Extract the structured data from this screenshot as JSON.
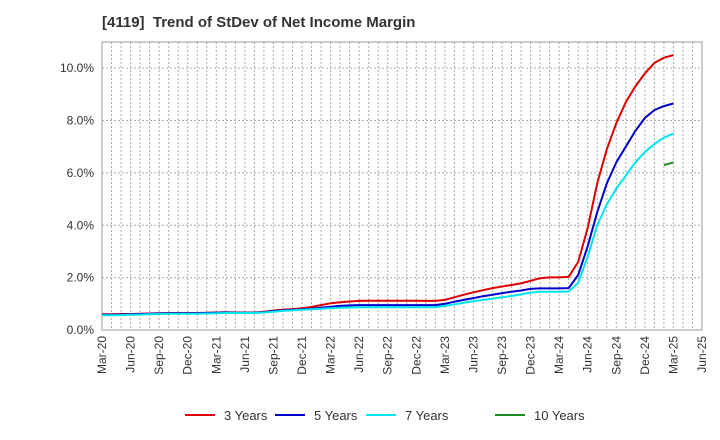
{
  "chart_data": {
    "type": "line",
    "title": "[4119]  Trend of StDev of Net Income Margin",
    "xlabel": "",
    "ylabel": "",
    "ylim": [
      0,
      11
    ],
    "yticks": [
      0,
      2,
      4,
      6,
      8,
      10
    ],
    "ytick_labels": [
      "0.0%",
      "2.0%",
      "4.0%",
      "6.0%",
      "8.0%",
      "10.0%"
    ],
    "xticks": [
      "Mar-20",
      "Jun-20",
      "Sep-20",
      "Dec-20",
      "Mar-21",
      "Jun-21",
      "Sep-21",
      "Dec-21",
      "Mar-22",
      "Jun-22",
      "Sep-22",
      "Dec-22",
      "Mar-23",
      "Jun-23",
      "Sep-23",
      "Dec-23",
      "Mar-24",
      "Jun-24",
      "Sep-24",
      "Dec-24",
      "Mar-25",
      "Jun-25"
    ],
    "x": [
      "Mar-20",
      "Apr-20",
      "May-20",
      "Jun-20",
      "Jul-20",
      "Aug-20",
      "Sep-20",
      "Oct-20",
      "Nov-20",
      "Dec-20",
      "Jan-21",
      "Feb-21",
      "Mar-21",
      "Apr-21",
      "May-21",
      "Jun-21",
      "Jul-21",
      "Aug-21",
      "Sep-21",
      "Oct-21",
      "Nov-21",
      "Dec-21",
      "Jan-22",
      "Feb-22",
      "Mar-22",
      "Apr-22",
      "May-22",
      "Jun-22",
      "Jul-22",
      "Aug-22",
      "Sep-22",
      "Oct-22",
      "Nov-22",
      "Dec-22",
      "Jan-23",
      "Feb-23",
      "Mar-23",
      "Apr-23",
      "May-23",
      "Jun-23",
      "Jul-23",
      "Aug-23",
      "Sep-23",
      "Oct-23",
      "Nov-23",
      "Dec-23",
      "Jan-24",
      "Feb-24",
      "Mar-24",
      "Apr-24",
      "May-24",
      "Jun-24",
      "Jul-24",
      "Aug-24",
      "Sep-24",
      "Oct-24",
      "Nov-24",
      "Dec-24",
      "Jan-25",
      "Feb-25",
      "Mar-25"
    ],
    "grid": true,
    "legend_position": "bottom",
    "series": [
      {
        "name": "3 Years",
        "color": "#dd0000",
        "values": [
          0.6,
          0.6,
          0.61,
          0.61,
          0.62,
          0.63,
          0.64,
          0.65,
          0.65,
          0.65,
          0.65,
          0.66,
          0.67,
          0.68,
          0.67,
          0.67,
          0.67,
          0.7,
          0.74,
          0.78,
          0.8,
          0.83,
          0.88,
          0.95,
          1.02,
          1.06,
          1.09,
          1.11,
          1.12,
          1.12,
          1.12,
          1.12,
          1.12,
          1.12,
          1.11,
          1.11,
          1.15,
          1.25,
          1.35,
          1.44,
          1.52,
          1.6,
          1.66,
          1.72,
          1.78,
          1.88,
          1.98,
          2.01,
          2.01,
          2.03,
          2.6,
          3.9,
          5.6,
          6.9,
          7.9,
          8.7,
          9.3,
          9.8,
          10.2,
          10.4,
          10.5
        ]
      },
      {
        "name": "5 Years",
        "color": "#0000cc",
        "values": [
          0.58,
          0.58,
          0.59,
          0.6,
          0.61,
          0.62,
          0.63,
          0.64,
          0.64,
          0.64,
          0.64,
          0.65,
          0.66,
          0.67,
          0.66,
          0.66,
          0.66,
          0.68,
          0.72,
          0.75,
          0.77,
          0.79,
          0.81,
          0.85,
          0.89,
          0.92,
          0.94,
          0.95,
          0.95,
          0.95,
          0.95,
          0.95,
          0.95,
          0.95,
          0.95,
          0.95,
          1.0,
          1.08,
          1.15,
          1.22,
          1.29,
          1.35,
          1.41,
          1.46,
          1.51,
          1.57,
          1.59,
          1.59,
          1.59,
          1.6,
          2.1,
          3.2,
          4.5,
          5.6,
          6.4,
          7.0,
          7.6,
          8.1,
          8.4,
          8.55,
          8.65
        ]
      },
      {
        "name": "7 Years",
        "color": "#00e5ee",
        "values": [
          0.56,
          0.56,
          0.57,
          0.58,
          0.59,
          0.6,
          0.61,
          0.62,
          0.62,
          0.62,
          0.62,
          0.63,
          0.64,
          0.65,
          0.65,
          0.65,
          0.65,
          0.67,
          0.7,
          0.73,
          0.75,
          0.77,
          0.79,
          0.81,
          0.83,
          0.85,
          0.86,
          0.87,
          0.87,
          0.87,
          0.87,
          0.87,
          0.87,
          0.87,
          0.87,
          0.87,
          0.92,
          0.98,
          1.04,
          1.1,
          1.15,
          1.2,
          1.25,
          1.3,
          1.36,
          1.43,
          1.46,
          1.46,
          1.46,
          1.47,
          1.8,
          2.8,
          4.0,
          4.8,
          5.4,
          5.9,
          6.4,
          6.8,
          7.1,
          7.35,
          7.5
        ]
      },
      {
        "name": "10 Years",
        "color": "#228822",
        "values": [
          null,
          null,
          null,
          null,
          null,
          null,
          null,
          null,
          null,
          null,
          null,
          null,
          null,
          null,
          null,
          null,
          null,
          null,
          null,
          null,
          null,
          null,
          null,
          null,
          null,
          null,
          null,
          null,
          null,
          null,
          null,
          null,
          null,
          null,
          null,
          null,
          null,
          null,
          null,
          null,
          null,
          null,
          null,
          null,
          null,
          null,
          null,
          null,
          null,
          null,
          null,
          null,
          null,
          null,
          null,
          null,
          null,
          null,
          null,
          6.3,
          6.4
        ]
      }
    ]
  }
}
